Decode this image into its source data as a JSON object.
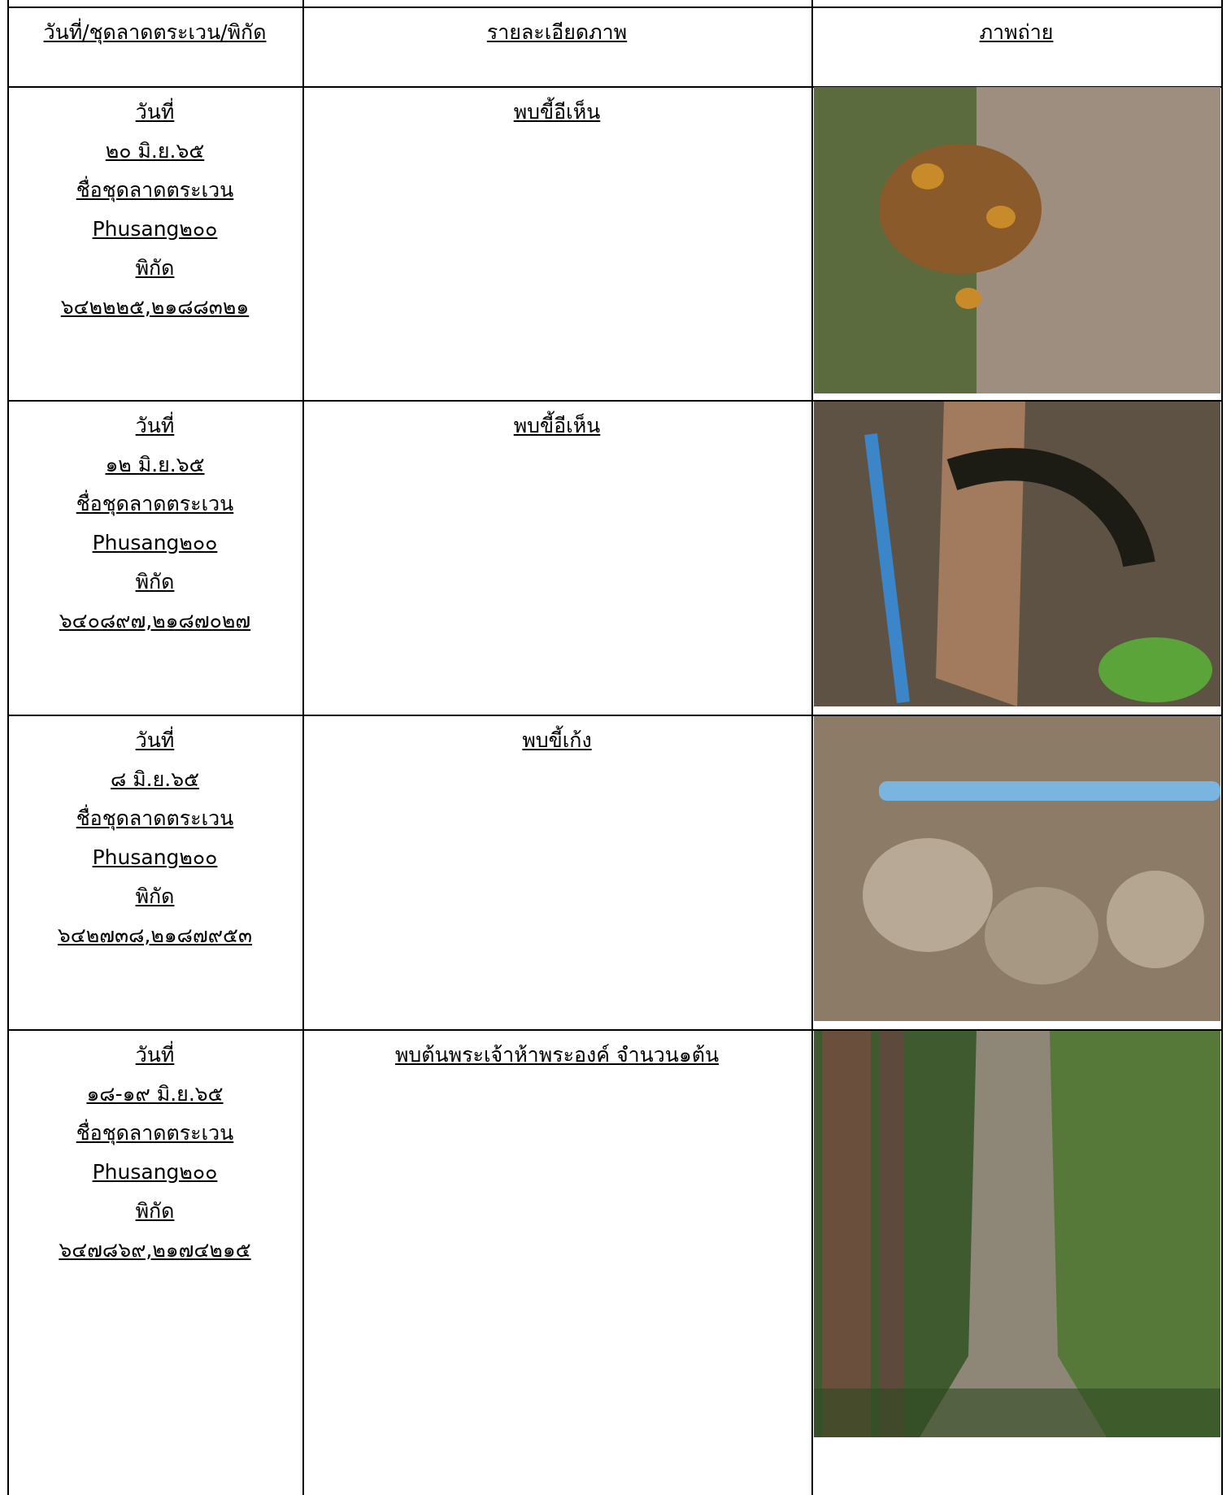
{
  "table": {
    "header": [
      "วันที่/ชุดลาดตระเวน/พิกัด",
      "รายละเอียดภาพ",
      "ภาพถ่าย"
    ],
    "rows": [
      {
        "date_label": "วันที่",
        "date": "๒๐ มิ.ย.๖๕",
        "patrol_label": "ชื่อชุดลาดตระเวน",
        "patrol": "Phusang๒๐๐",
        "coord_label": "พิกัด",
        "coord": "๖๔๒๒๒๕,๒๑๘๘๓๒๑",
        "detail": "พบขี้อีเห็น"
      },
      {
        "date_label": "วันที่",
        "date": "๑๒ มิ.ย.๖๕",
        "patrol_label": "ชื่อชุดลาดตระเวน",
        "patrol": "Phusang๒๐๐",
        "coord_label": "พิกัด",
        "coord": "๖๔๐๘๙๗,๒๑๘๗๐๒๗",
        "detail": "พบขี้อีเห็น"
      },
      {
        "date_label": "วันที่",
        "date": "๘ มิ.ย.๖๕",
        "patrol_label": "ชื่อชุดลาดตระเวน",
        "patrol": "Phusang๒๐๐",
        "coord_label": "พิกัด",
        "coord": "๖๔๒๗๓๘,๒๑๘๗๙๕๓",
        "detail": "พบขี้เก้ง"
      },
      {
        "date_label": "วันที่",
        "date": "๑๘-๑๙ มิ.ย.๖๕",
        "patrol_label": "ชื่อชุดลาดตระเวน",
        "patrol": "Phusang๒๐๐",
        "coord_label": "พิกัด",
        "coord": "๖๔๗๘๖๙,๒๑๗๔๒๑๕",
        "detail": "พบต้นพระเจ้าห้าพระองค์ จำนวน๑ต้น"
      }
    ]
  }
}
